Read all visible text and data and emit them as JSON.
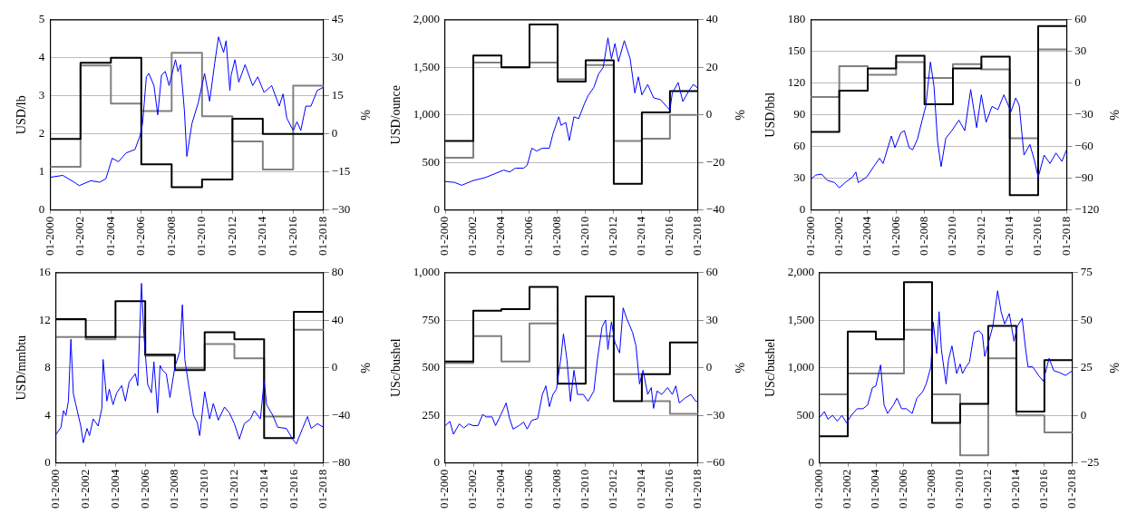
{
  "chart_data": [
    {
      "type": "line",
      "ylabel": "USD/lb",
      "y2label": "%",
      "xlim": [
        "2000-01",
        "2018-01"
      ],
      "xticks": [
        {
          "value": "2000-01",
          "label": "01-2000"
        },
        {
          "value": "2002-01",
          "label": "01-2002"
        },
        {
          "value": "2004-01",
          "label": "01-2004"
        },
        {
          "value": "2006-01",
          "label": "01-2006"
        },
        {
          "value": "2008-01",
          "label": "01-2008"
        },
        {
          "value": "2010-01",
          "label": "01-2010"
        },
        {
          "value": "2012-01",
          "label": "01-2012"
        },
        {
          "value": "2014-01",
          "label": "01-2014"
        },
        {
          "value": "2016-01",
          "label": "01-2016"
        },
        {
          "value": "2018-01",
          "label": "01-2018"
        }
      ],
      "ylim": [
        0,
        5
      ],
      "yticks": [
        0,
        1,
        2,
        3,
        4,
        5
      ],
      "y2lim": [
        -30,
        45
      ],
      "y2ticks": [
        {
          "value": -30,
          "label": "−30"
        },
        {
          "value": -15,
          "label": "−15"
        },
        0,
        15,
        30,
        45
      ],
      "grid": "y",
      "series": [
        {
          "type": "line",
          "color": "#0000ff",
          "x": [
            "2000-01",
            "2000-11",
            "2001-08",
            "2001-12",
            "2002-09",
            "2003-04",
            "2003-09",
            "2004-02",
            "2004-07",
            "2005-01",
            "2005-08",
            "2005-12",
            "2006-02",
            "2006-05",
            "2006-07",
            "2006-11",
            "2007-02",
            "2007-05",
            "2007-08",
            "2007-11",
            "2008-04",
            "2008-06",
            "2008-08",
            "2008-11",
            "2009-01",
            "2009-05",
            "2009-10",
            "2010-03",
            "2010-07",
            "2010-11",
            "2011-02",
            "2011-06",
            "2011-08",
            "2011-11",
            "2011-12",
            "2012-03",
            "2012-06",
            "2012-11",
            "2013-05",
            "2013-09",
            "2014-02",
            "2014-08",
            "2015-02",
            "2015-05",
            "2015-08",
            "2016-01",
            "2016-04",
            "2016-07",
            "2016-11",
            "2017-03",
            "2017-08",
            "2018-01"
          ],
          "values": [
            0.86,
            0.91,
            0.73,
            0.64,
            0.77,
            0.73,
            0.82,
            1.36,
            1.27,
            1.5,
            1.59,
            1.95,
            2.27,
            3.5,
            3.59,
            3.27,
            2.5,
            3.55,
            3.64,
            3.27,
            3.95,
            3.64,
            3.82,
            2.64,
            1.41,
            2.27,
            2.82,
            3.59,
            2.86,
            3.86,
            4.55,
            4.14,
            4.45,
            3.14,
            3.55,
            3.95,
            3.36,
            3.82,
            3.27,
            3.5,
            3.09,
            3.27,
            2.73,
            3.05,
            2.41,
            2.09,
            2.32,
            2.09,
            2.73,
            2.73,
            3.14,
            3.23
          ]
        },
        {
          "type": "step",
          "axis": "y2",
          "color": "#000000",
          "x": [
            "2000-01",
            "2002-01",
            "2004-01",
            "2006-01",
            "2008-01",
            "2010-01",
            "2012-01",
            "2014-01",
            "2016-01",
            "2018-01"
          ],
          "values": [
            -2,
            28,
            30,
            -12,
            -21,
            -18,
            6,
            0,
            0,
            0
          ]
        },
        {
          "type": "step",
          "axis": "y2",
          "color": "#808080",
          "x": [
            "2000-01",
            "2002-01",
            "2004-01",
            "2006-01",
            "2008-01",
            "2010-01",
            "2012-01",
            "2014-01",
            "2016-01",
            "2018-01"
          ],
          "values": [
            -13,
            27,
            12,
            9,
            32,
            7,
            -3,
            -14,
            19,
            19
          ]
        }
      ]
    },
    {
      "type": "line",
      "ylabel": "USD/ounce",
      "y2label": "%",
      "xlim": [
        "2000-01",
        "2018-01"
      ],
      "xticks": [
        {
          "value": "2000-01",
          "label": "01-2000"
        },
        {
          "value": "2002-01",
          "label": "01-2002"
        },
        {
          "value": "2004-01",
          "label": "01-2004"
        },
        {
          "value": "2006-01",
          "label": "01-2006"
        },
        {
          "value": "2008-01",
          "label": "01-2008"
        },
        {
          "value": "2010-01",
          "label": "01-2010"
        },
        {
          "value": "2012-01",
          "label": "01-2012"
        },
        {
          "value": "2014-01",
          "label": "01-2014"
        },
        {
          "value": "2016-01",
          "label": "01-2016"
        },
        {
          "value": "2018-01",
          "label": "01-2018"
        }
      ],
      "ylim": [
        0,
        2000
      ],
      "yticks": [
        0,
        500,
        {
          "value": 1000,
          "label": "1,000"
        },
        {
          "value": 1500,
          "label": "1,500"
        },
        {
          "value": 2000,
          "label": "2,000"
        }
      ],
      "y2lim": [
        -40,
        40
      ],
      "y2ticks": [
        {
          "value": -40,
          "label": "−40"
        },
        {
          "value": -20,
          "label": "−20"
        },
        0,
        20,
        40
      ],
      "grid": "y",
      "series": [
        {
          "type": "line",
          "color": "#0000ff",
          "x": [
            "2000-01",
            "2000-09",
            "2001-03",
            "2002-01",
            "2002-11",
            "2003-07",
            "2004-03",
            "2004-08",
            "2005-01",
            "2005-08",
            "2005-11",
            "2006-03",
            "2006-07",
            "2006-12",
            "2007-06",
            "2007-09",
            "2008-02",
            "2008-04",
            "2008-08",
            "2008-11",
            "2009-03",
            "2009-07",
            "2009-12",
            "2010-03",
            "2010-08",
            "2010-12",
            "2011-04",
            "2011-08",
            "2011-11",
            "2012-02",
            "2012-05",
            "2012-10",
            "2013-03",
            "2013-07",
            "2013-10",
            "2014-01",
            "2014-06",
            "2014-11",
            "2015-05",
            "2015-10",
            "2016-01",
            "2016-03",
            "2016-08",
            "2016-12",
            "2017-05",
            "2017-09",
            "2018-01"
          ],
          "values": [
            300,
            290,
            260,
            310,
            340,
            380,
            420,
            400,
            440,
            440,
            470,
            650,
            620,
            650,
            650,
            800,
            980,
            890,
            920,
            730,
            980,
            960,
            1120,
            1200,
            1290,
            1430,
            1500,
            1810,
            1590,
            1750,
            1560,
            1780,
            1590,
            1230,
            1400,
            1210,
            1320,
            1180,
            1160,
            1090,
            1050,
            1230,
            1340,
            1140,
            1250,
            1320,
            1280
          ]
        },
        {
          "type": "step",
          "axis": "y2",
          "color": "#000000",
          "x": [
            "2000-01",
            "2002-01",
            "2004-01",
            "2006-01",
            "2008-01",
            "2010-01",
            "2012-01",
            "2014-01",
            "2016-01",
            "2018-01"
          ],
          "values": [
            -11,
            25,
            20,
            38,
            14,
            23,
            -29,
            1,
            10,
            10
          ]
        },
        {
          "type": "step",
          "axis": "y2",
          "color": "#808080",
          "x": [
            "2000-01",
            "2002-01",
            "2004-01",
            "2006-01",
            "2008-01",
            "2010-01",
            "2012-01",
            "2014-01",
            "2016-01",
            "2018-01"
          ],
          "values": [
            -18,
            22,
            20,
            22,
            15,
            21,
            -11,
            -10,
            0,
            0
          ]
        }
      ]
    },
    {
      "type": "line",
      "ylabel": "USD/bbl",
      "y2label": "%",
      "xlim": [
        "2000-01",
        "2018-01"
      ],
      "xticks": [
        {
          "value": "2000-01",
          "label": "01-2000"
        },
        {
          "value": "2002-01",
          "label": "01-2002"
        },
        {
          "value": "2004-01",
          "label": "01-2004"
        },
        {
          "value": "2006-01",
          "label": "01-2006"
        },
        {
          "value": "2008-01",
          "label": "01-2008"
        },
        {
          "value": "2010-01",
          "label": "01-2010"
        },
        {
          "value": "2012-01",
          "label": "01-2012"
        },
        {
          "value": "2014-01",
          "label": "01-2014"
        },
        {
          "value": "2016-01",
          "label": "01-2016"
        },
        {
          "value": "2018-01",
          "label": "01-2018"
        }
      ],
      "ylim": [
        0,
        180
      ],
      "yticks": [
        0,
        30,
        60,
        90,
        120,
        150,
        180
      ],
      "y2lim": [
        -120,
        60
      ],
      "y2ticks": [
        {
          "value": -120,
          "label": "−120"
        },
        {
          "value": -90,
          "label": "−90"
        },
        {
          "value": -60,
          "label": "−60"
        },
        {
          "value": -30,
          "label": "−30"
        },
        0,
        30,
        60
      ],
      "grid": "y",
      "series": [
        {
          "type": "line",
          "color": "#0000ff",
          "x": [
            "2000-01",
            "2000-05",
            "2000-10",
            "2001-03",
            "2001-09",
            "2002-01",
            "2002-06",
            "2002-12",
            "2003-03",
            "2003-05",
            "2003-12",
            "2004-06",
            "2004-11",
            "2005-02",
            "2005-09",
            "2005-12",
            "2006-05",
            "2006-08",
            "2006-12",
            "2007-03",
            "2007-07",
            "2007-11",
            "2008-02",
            "2008-06",
            "2008-09",
            "2008-12",
            "2009-03",
            "2009-07",
            "2009-12",
            "2010-06",
            "2010-11",
            "2011-04",
            "2011-09",
            "2012-01",
            "2012-05",
            "2012-10",
            "2013-03",
            "2013-08",
            "2014-02",
            "2014-06",
            "2014-09",
            "2015-01",
            "2015-06",
            "2015-10",
            "2016-01",
            "2016-06",
            "2016-11",
            "2017-04",
            "2017-09",
            "2018-01"
          ],
          "values": [
            29,
            33,
            34,
            28,
            26,
            21,
            26,
            31,
            36,
            26,
            31,
            41,
            49,
            44,
            70,
            59,
            73,
            75,
            59,
            57,
            67,
            85,
            98,
            140,
            117,
            65,
            41,
            68,
            75,
            85,
            75,
            114,
            78,
            109,
            83,
            98,
            95,
            109,
            93,
            106,
            99,
            52,
            62,
            46,
            31,
            52,
            44,
            54,
            46,
            57
          ]
        },
        {
          "type": "step",
          "axis": "y2",
          "color": "#000000",
          "x": [
            "2000-01",
            "2002-01",
            "2004-01",
            "2006-01",
            "2008-01",
            "2010-01",
            "2012-01",
            "2014-01",
            "2016-01",
            "2018-01"
          ],
          "values": [
            -46,
            -7,
            14,
            26,
            -20,
            14,
            25,
            -106,
            54,
            54
          ]
        },
        {
          "type": "step",
          "axis": "y2",
          "color": "#808080",
          "x": [
            "2000-01",
            "2002-01",
            "2004-01",
            "2006-01",
            "2008-01",
            "2010-01",
            "2012-01",
            "2014-01",
            "2016-01",
            "2018-01"
          ],
          "values": [
            -13,
            16,
            8,
            20,
            5,
            18,
            13,
            -52,
            32,
            32
          ]
        }
      ]
    },
    {
      "type": "line",
      "ylabel": "USD/mmbtu",
      "y2label": "%",
      "xlim": [
        "2000-01",
        "2018-01"
      ],
      "xticks": [
        {
          "value": "2000-01",
          "label": "01-2000"
        },
        {
          "value": "2002-01",
          "label": "01-2002"
        },
        {
          "value": "2004-01",
          "label": "01-2004"
        },
        {
          "value": "2006-01",
          "label": "01-2006"
        },
        {
          "value": "2008-01",
          "label": "01-2008"
        },
        {
          "value": "2010-01",
          "label": "01-2010"
        },
        {
          "value": "2012-01",
          "label": "01-2012"
        },
        {
          "value": "2014-01",
          "label": "01-2014"
        },
        {
          "value": "2016-01",
          "label": "01-2016"
        },
        {
          "value": "2018-01",
          "label": "01-2018"
        }
      ],
      "ylim": [
        0,
        16
      ],
      "yticks": [
        0,
        4,
        8,
        12,
        16
      ],
      "y2lim": [
        -80,
        80
      ],
      "y2ticks": [
        {
          "value": -80,
          "label": "−80"
        },
        {
          "value": -40,
          "label": "−40"
        },
        0,
        40,
        80
      ],
      "grid": "y",
      "series": [
        {
          "type": "line",
          "color": "#0000ff",
          "x": [
            "2000-01",
            "2000-05",
            "2000-07",
            "2000-09",
            "2000-11",
            "2001-01",
            "2001-03",
            "2001-05",
            "2001-09",
            "2001-11",
            "2002-02",
            "2002-04",
            "2002-07",
            "2002-11",
            "2003-02",
            "2003-03",
            "2003-06",
            "2003-08",
            "2003-11",
            "2004-02",
            "2004-06",
            "2004-09",
            "2004-12",
            "2005-05",
            "2005-07",
            "2005-10",
            "2005-12",
            "2006-03",
            "2006-06",
            "2006-08",
            "2006-11",
            "2007-01",
            "2007-03",
            "2007-06",
            "2007-09",
            "2008-01",
            "2008-05",
            "2008-07",
            "2008-09",
            "2008-12",
            "2009-04",
            "2009-07",
            "2009-09",
            "2010-01",
            "2010-05",
            "2010-08",
            "2010-12",
            "2011-05",
            "2011-09",
            "2012-01",
            "2012-05",
            "2012-09",
            "2013-02",
            "2013-05",
            "2013-10",
            "2014-01",
            "2014-03",
            "2014-08",
            "2014-12",
            "2015-07",
            "2015-12",
            "2016-03",
            "2016-08",
            "2016-12",
            "2017-03",
            "2017-08",
            "2018-01"
          ],
          "values": [
            2.4,
            3.0,
            4.4,
            4.0,
            5.2,
            10.4,
            5.8,
            4.9,
            3.1,
            1.7,
            2.9,
            2.3,
            3.7,
            3.1,
            4.6,
            8.7,
            5.2,
            6.2,
            4.9,
            5.9,
            6.5,
            5.2,
            6.8,
            7.5,
            6.5,
            15.1,
            10.7,
            6.6,
            5.9,
            8.5,
            4.2,
            8.2,
            7.8,
            7.5,
            5.5,
            8.1,
            9.4,
            13.3,
            8.7,
            6.6,
            4.0,
            3.4,
            2.3,
            6.0,
            3.7,
            5.0,
            3.6,
            4.7,
            4.2,
            3.3,
            2.0,
            3.3,
            3.7,
            4.4,
            3.7,
            6.9,
            4.9,
            4.0,
            3.0,
            2.9,
            2.0,
            1.6,
            2.9,
            3.9,
            2.9,
            3.3,
            3.0
          ]
        },
        {
          "type": "step",
          "axis": "y2",
          "color": "#000000",
          "x": [
            "2000-01",
            "2002-01",
            "2004-01",
            "2006-01",
            "2008-01",
            "2010-01",
            "2012-01",
            "2014-01",
            "2016-01",
            "2018-01"
          ],
          "values": [
            41,
            26,
            56,
            11,
            -2,
            30,
            24,
            -59,
            47,
            47
          ]
        },
        {
          "type": "step",
          "axis": "y2",
          "color": "#808080",
          "x": [
            "2000-01",
            "2002-01",
            "2004-01",
            "2006-01",
            "2008-01",
            "2010-01",
            "2012-01",
            "2014-01",
            "2016-01",
            "2018-01"
          ],
          "values": [
            26,
            24,
            26,
            10,
            0,
            20,
            8,
            -41,
            32,
            32
          ]
        }
      ]
    },
    {
      "type": "line",
      "ylabel": "USc/bushel",
      "y2label": "%",
      "xlim": [
        "2000-01",
        "2018-01"
      ],
      "xticks": [
        {
          "value": "2000-01",
          "label": "01-2000"
        },
        {
          "value": "2002-01",
          "label": "01-2002"
        },
        {
          "value": "2004-01",
          "label": "01-2004"
        },
        {
          "value": "2006-01",
          "label": "01-2006"
        },
        {
          "value": "2008-01",
          "label": "01-2008"
        },
        {
          "value": "2010-01",
          "label": "01-2010"
        },
        {
          "value": "2012-01",
          "label": "01-2012"
        },
        {
          "value": "2014-01",
          "label": "01-2014"
        },
        {
          "value": "2016-01",
          "label": "01-2016"
        },
        {
          "value": "2018-01",
          "label": "01-2018"
        }
      ],
      "ylim": [
        0,
        1000
      ],
      "yticks": [
        0,
        250,
        500,
        750,
        {
          "value": 1000,
          "label": "1,000"
        }
      ],
      "y2lim": [
        -60,
        60
      ],
      "y2ticks": [
        {
          "value": -60,
          "label": "−60"
        },
        {
          "value": -30,
          "label": "−30"
        },
        0,
        30,
        60
      ],
      "grid": "y",
      "series": [
        {
          "type": "line",
          "color": "#0000ff",
          "x": [
            "2000-01",
            "2000-05",
            "2000-08",
            "2001-01",
            "2001-05",
            "2001-09",
            "2002-01",
            "2002-05",
            "2002-09",
            "2002-12",
            "2003-05",
            "2003-08",
            "2003-12",
            "2004-03",
            "2004-05",
            "2004-08",
            "2004-11",
            "2005-04",
            "2005-08",
            "2005-11",
            "2006-03",
            "2006-08",
            "2006-12",
            "2007-03",
            "2007-06",
            "2007-09",
            "2007-12",
            "2008-04",
            "2008-06",
            "2008-09",
            "2008-12",
            "2009-03",
            "2009-06",
            "2009-11",
            "2010-03",
            "2010-08",
            "2010-11",
            "2011-03",
            "2011-06",
            "2011-08",
            "2011-11",
            "2012-02",
            "2012-06",
            "2012-09",
            "2012-12",
            "2013-05",
            "2013-08",
            "2013-11",
            "2014-02",
            "2014-06",
            "2014-09",
            "2014-11",
            "2015-02",
            "2015-06",
            "2015-11",
            "2016-03",
            "2016-06",
            "2016-09",
            "2017-02",
            "2017-07",
            "2017-11",
            "2018-01"
          ],
          "values": [
            196,
            218,
            151,
            205,
            184,
            205,
            196,
            196,
            255,
            242,
            242,
            196,
            247,
            287,
            315,
            233,
            178,
            196,
            215,
            178,
            224,
            233,
            360,
            405,
            296,
            360,
            387,
            560,
            678,
            542,
            324,
            487,
            360,
            360,
            324,
            378,
            542,
            715,
            751,
            596,
            742,
            633,
            578,
            815,
            760,
            687,
            615,
            415,
            487,
            360,
            396,
            287,
            378,
            360,
            396,
            360,
            405,
            315,
            342,
            360,
            324,
            324
          ]
        },
        {
          "type": "step",
          "axis": "y2",
          "color": "#000000",
          "x": [
            "2000-01",
            "2002-01",
            "2004-01",
            "2006-01",
            "2008-01",
            "2010-01",
            "2012-01",
            "2014-01",
            "2016-01",
            "2018-01"
          ],
          "values": [
            4,
            36,
            37,
            51,
            -10,
            45,
            -21,
            -4,
            16,
            16
          ]
        },
        {
          "type": "step",
          "axis": "y2",
          "color": "#808080",
          "x": [
            "2000-01",
            "2002-01",
            "2004-01",
            "2006-01",
            "2008-01",
            "2010-01",
            "2012-01",
            "2014-01",
            "2016-01",
            "2018-01"
          ],
          "values": [
            3,
            20,
            4,
            28,
            0,
            20,
            -4,
            -21,
            -29,
            -29
          ]
        }
      ]
    },
    {
      "type": "line",
      "ylabel": "USc/bushel",
      "y2label": "%",
      "xlim": [
        "2000-01",
        "2018-01"
      ],
      "xticks": [
        {
          "value": "2000-01",
          "label": "01-2000"
        },
        {
          "value": "2002-01",
          "label": "01-2002"
        },
        {
          "value": "2004-01",
          "label": "01-2004"
        },
        {
          "value": "2006-01",
          "label": "01-2006"
        },
        {
          "value": "2008-01",
          "label": "01-2008"
        },
        {
          "value": "2010-01",
          "label": "01-2010"
        },
        {
          "value": "2012-01",
          "label": "01-2012"
        },
        {
          "value": "2014-01",
          "label": "01-2014"
        },
        {
          "value": "2016-01",
          "label": "01-2016"
        },
        {
          "value": "2018-01",
          "label": "01-2018"
        }
      ],
      "ylim": [
        0,
        2000
      ],
      "yticks": [
        0,
        500,
        {
          "value": 1000,
          "label": "1,000"
        },
        {
          "value": 1500,
          "label": "1,500"
        },
        {
          "value": 2000,
          "label": "2,000"
        }
      ],
      "y2lim": [
        -25,
        75
      ],
      "y2ticks": [
        {
          "value": -25,
          "label": "−25"
        },
        0,
        25,
        50,
        75
      ],
      "grid": "y",
      "series": [
        {
          "type": "line",
          "color": "#0000ff",
          "x": [
            "2000-01",
            "2000-05",
            "2000-08",
            "2000-12",
            "2001-04",
            "2001-08",
            "2001-12",
            "2002-04",
            "2002-09",
            "2003-02",
            "2003-06",
            "2003-10",
            "2004-01",
            "2004-05",
            "2004-08",
            "2004-11",
            "2005-04",
            "2005-07",
            "2005-11",
            "2006-03",
            "2006-08",
            "2006-12",
            "2007-05",
            "2007-08",
            "2007-12",
            "2008-02",
            "2008-05",
            "2008-07",
            "2008-09",
            "2009-01",
            "2009-03",
            "2009-06",
            "2009-10",
            "2010-01",
            "2010-03",
            "2010-06",
            "2010-09",
            "2011-01",
            "2011-05",
            "2011-08",
            "2011-10",
            "2011-12",
            "2012-05",
            "2012-09",
            "2012-12",
            "2013-03",
            "2013-07",
            "2013-11",
            "2014-02",
            "2014-06",
            "2014-09",
            "2014-11",
            "2015-03",
            "2015-08",
            "2015-12",
            "2016-05",
            "2016-09",
            "2017-02",
            "2017-07",
            "2018-01"
          ],
          "values": [
            480,
            540,
            460,
            500,
            440,
            500,
            420,
            500,
            570,
            570,
            610,
            790,
            810,
            1030,
            610,
            520,
            610,
            680,
            570,
            570,
            520,
            680,
            750,
            830,
            1010,
            1480,
            1150,
            1590,
            1190,
            830,
            1080,
            1230,
            940,
            1040,
            940,
            1010,
            1060,
            1370,
            1390,
            1350,
            1120,
            1210,
            1440,
            1810,
            1590,
            1460,
            1570,
            1280,
            1440,
            1520,
            1190,
            1010,
            1010,
            920,
            860,
            1100,
            970,
            950,
            920,
            970
          ]
        },
        {
          "type": "step",
          "axis": "y2",
          "color": "#000000",
          "x": [
            "2000-01",
            "2002-01",
            "2004-01",
            "2006-01",
            "2008-01",
            "2010-01",
            "2012-01",
            "2014-01",
            "2016-01",
            "2018-01"
          ],
          "values": [
            -11,
            44,
            40,
            70,
            -4,
            6,
            47,
            2,
            29,
            29
          ]
        },
        {
          "type": "step",
          "axis": "y2",
          "color": "#808080",
          "x": [
            "2000-01",
            "2002-01",
            "2004-01",
            "2006-01",
            "2008-01",
            "2010-01",
            "2012-01",
            "2014-01",
            "2016-01",
            "2018-01"
          ],
          "values": [
            11,
            22,
            22,
            45,
            11,
            -21,
            30,
            0,
            -9,
            -9
          ]
        }
      ]
    }
  ]
}
